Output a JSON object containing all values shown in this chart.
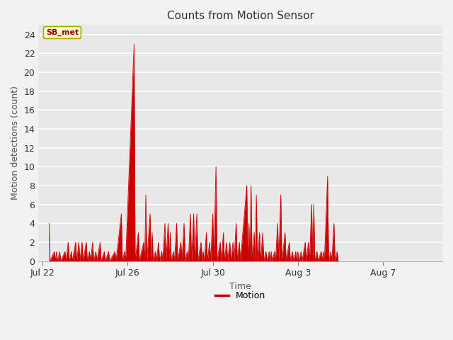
{
  "title": "Counts from Motion Sensor",
  "xlabel": "Time",
  "ylabel": "Motion detections (count)",
  "legend_label": "Motion",
  "line_color": "#cc0000",
  "figure_bg": "#f2f2f2",
  "plot_bg": "#e8e8e8",
  "grid_color": "#ffffff",
  "ylim": [
    0,
    25
  ],
  "yticks": [
    0,
    2,
    4,
    6,
    8,
    10,
    12,
    14,
    16,
    18,
    20,
    22,
    24
  ],
  "annotation_label": "SB_met",
  "x_tick_labels": [
    "Jul 22",
    "Jul 26",
    "Jul 30",
    "Aug 3",
    "Aug 7"
  ],
  "x_tick_positions": [
    0,
    4,
    8,
    12,
    16
  ],
  "xlim": [
    -0.2,
    18.8
  ],
  "data_points": [
    [
      0.3,
      4
    ],
    [
      0.35,
      0
    ],
    [
      0.55,
      1
    ],
    [
      0.6,
      0
    ],
    [
      0.65,
      1
    ],
    [
      0.7,
      0
    ],
    [
      0.8,
      1
    ],
    [
      0.85,
      0
    ],
    [
      1.05,
      1
    ],
    [
      1.1,
      0
    ],
    [
      1.2,
      2
    ],
    [
      1.25,
      0
    ],
    [
      1.35,
      1
    ],
    [
      1.4,
      0
    ],
    [
      1.55,
      2
    ],
    [
      1.6,
      0
    ],
    [
      1.7,
      2
    ],
    [
      1.75,
      0
    ],
    [
      1.85,
      2
    ],
    [
      1.9,
      0
    ],
    [
      2.05,
      2
    ],
    [
      2.1,
      0
    ],
    [
      2.2,
      1
    ],
    [
      2.25,
      0
    ],
    [
      2.35,
      2
    ],
    [
      2.4,
      0
    ],
    [
      2.5,
      1
    ],
    [
      2.55,
      0
    ],
    [
      2.7,
      2
    ],
    [
      2.75,
      0
    ],
    [
      2.9,
      1
    ],
    [
      2.95,
      0
    ],
    [
      3.1,
      1
    ],
    [
      3.15,
      0
    ],
    [
      3.4,
      1
    ],
    [
      3.45,
      0
    ],
    [
      3.7,
      5
    ],
    [
      3.75,
      0
    ],
    [
      3.85,
      1
    ],
    [
      3.9,
      0
    ],
    [
      4.3,
      23
    ],
    [
      4.35,
      0
    ],
    [
      4.5,
      3
    ],
    [
      4.55,
      0
    ],
    [
      4.75,
      2
    ],
    [
      4.8,
      0
    ],
    [
      4.85,
      7
    ],
    [
      4.9,
      0
    ],
    [
      5.05,
      5
    ],
    [
      5.1,
      0
    ],
    [
      5.15,
      3
    ],
    [
      5.2,
      0
    ],
    [
      5.3,
      1
    ],
    [
      5.35,
      0
    ],
    [
      5.45,
      2
    ],
    [
      5.5,
      0
    ],
    [
      5.6,
      1
    ],
    [
      5.65,
      0
    ],
    [
      5.75,
      4
    ],
    [
      5.8,
      0
    ],
    [
      5.9,
      4
    ],
    [
      5.95,
      0
    ],
    [
      6.0,
      3
    ],
    [
      6.05,
      0
    ],
    [
      6.15,
      1
    ],
    [
      6.2,
      0
    ],
    [
      6.3,
      4
    ],
    [
      6.35,
      0
    ],
    [
      6.5,
      2
    ],
    [
      6.55,
      0
    ],
    [
      6.65,
      4
    ],
    [
      6.7,
      0
    ],
    [
      6.8,
      1
    ],
    [
      6.85,
      0
    ],
    [
      6.95,
      5
    ],
    [
      7.0,
      0
    ],
    [
      7.1,
      5
    ],
    [
      7.15,
      0
    ],
    [
      7.25,
      5
    ],
    [
      7.3,
      0
    ],
    [
      7.45,
      2
    ],
    [
      7.5,
      0
    ],
    [
      7.55,
      1
    ],
    [
      7.6,
      0
    ],
    [
      7.7,
      3
    ],
    [
      7.75,
      0
    ],
    [
      7.85,
      2
    ],
    [
      7.9,
      0
    ],
    [
      8.0,
      5
    ],
    [
      8.05,
      0
    ],
    [
      8.15,
      10
    ],
    [
      8.2,
      0
    ],
    [
      8.35,
      2
    ],
    [
      8.4,
      0
    ],
    [
      8.5,
      3
    ],
    [
      8.55,
      0
    ],
    [
      8.65,
      2
    ],
    [
      8.7,
      0
    ],
    [
      8.8,
      2
    ],
    [
      8.85,
      0
    ],
    [
      8.95,
      2
    ],
    [
      9.0,
      0
    ],
    [
      9.1,
      4
    ],
    [
      9.15,
      0
    ],
    [
      9.25,
      2
    ],
    [
      9.3,
      0
    ],
    [
      9.6,
      8
    ],
    [
      9.65,
      0
    ],
    [
      9.7,
      4
    ],
    [
      9.75,
      0
    ],
    [
      9.8,
      8
    ],
    [
      9.85,
      0
    ],
    [
      9.95,
      3
    ],
    [
      10.0,
      0
    ],
    [
      10.05,
      7
    ],
    [
      10.1,
      0
    ],
    [
      10.2,
      3
    ],
    [
      10.25,
      0
    ],
    [
      10.35,
      3
    ],
    [
      10.4,
      0
    ],
    [
      10.5,
      1
    ],
    [
      10.55,
      0
    ],
    [
      10.65,
      1
    ],
    [
      10.7,
      0
    ],
    [
      10.75,
      1
    ],
    [
      10.8,
      0
    ],
    [
      10.9,
      1
    ],
    [
      10.95,
      0
    ],
    [
      11.05,
      4
    ],
    [
      11.1,
      0
    ],
    [
      11.2,
      7
    ],
    [
      11.25,
      0
    ],
    [
      11.4,
      3
    ],
    [
      11.45,
      0
    ],
    [
      11.6,
      2
    ],
    [
      11.65,
      0
    ],
    [
      11.75,
      1
    ],
    [
      11.8,
      0
    ],
    [
      11.9,
      1
    ],
    [
      11.95,
      0
    ],
    [
      12.0,
      1
    ],
    [
      12.05,
      0
    ],
    [
      12.15,
      1
    ],
    [
      12.2,
      0
    ],
    [
      12.35,
      2
    ],
    [
      12.4,
      0
    ],
    [
      12.5,
      2
    ],
    [
      12.55,
      0
    ],
    [
      12.65,
      6
    ],
    [
      12.7,
      0
    ],
    [
      12.75,
      6
    ],
    [
      12.8,
      0
    ],
    [
      12.9,
      1
    ],
    [
      12.95,
      0
    ],
    [
      13.1,
      1
    ],
    [
      13.15,
      0
    ],
    [
      13.2,
      1
    ],
    [
      13.25,
      0
    ],
    [
      13.4,
      9
    ],
    [
      13.45,
      0
    ],
    [
      13.55,
      1
    ],
    [
      13.6,
      0
    ],
    [
      13.7,
      4
    ],
    [
      13.75,
      0
    ],
    [
      13.85,
      1
    ],
    [
      13.9,
      0
    ]
  ]
}
